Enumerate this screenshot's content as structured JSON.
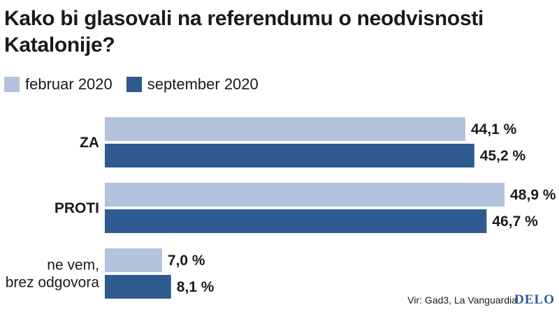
{
  "header": {
    "title": "Kako bi glasovali na referendumu o neodvisnosti Katalonije?"
  },
  "legend": [
    {
      "label": "februar 2020",
      "color": "#b3c2dd"
    },
    {
      "label": "september 2020",
      "color": "#2e5a8f"
    }
  ],
  "chart_data": {
    "type": "bar",
    "orientation": "horizontal",
    "title": "Kako bi glasovali na referendumu o neodvisnosti Katalonije?",
    "categories": [
      {
        "lines": [
          "ZA"
        ],
        "bold": true
      },
      {
        "lines": [
          "PROTI"
        ],
        "bold": true
      },
      {
        "lines": [
          "ne vem,",
          "brez odgovora"
        ],
        "bold": false
      }
    ],
    "series": [
      {
        "name": "februar 2020",
        "color": "#b3c2dd",
        "values": [
          44.1,
          48.9,
          7.0
        ],
        "labels": [
          "44,1 %",
          "48,9 %",
          "7,0 %"
        ]
      },
      {
        "name": "september 2020",
        "color": "#2e5a8f",
        "values": [
          45.2,
          46.7,
          8.1
        ],
        "labels": [
          "45,2 %",
          "46,7 %",
          "8,1 %"
        ]
      }
    ],
    "xlim": [
      0,
      60
    ],
    "xlabel": "",
    "ylabel": "",
    "grid": false,
    "legend_position": "top-left"
  },
  "footer": {
    "source": "Vir: Gad3, La Vanguardia",
    "logo": "DELO"
  }
}
